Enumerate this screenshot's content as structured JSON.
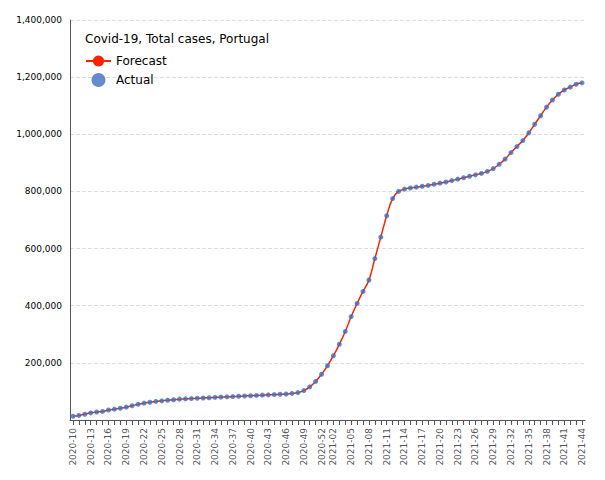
{
  "chart_data": {
    "type": "line",
    "title": "Covid-19, Total cases, Portugal",
    "categories": [
      "2020-10",
      null,
      null,
      "2020-13",
      null,
      null,
      "2020-16",
      null,
      null,
      "2020-19",
      null,
      null,
      "2020-22",
      null,
      null,
      "2020-25",
      null,
      null,
      "2020-28",
      null,
      null,
      "2020-31",
      null,
      null,
      "2020-34",
      null,
      null,
      "2020-37",
      null,
      null,
      "2020-40",
      null,
      null,
      "2020-43",
      null,
      null,
      "2020-46",
      null,
      null,
      "2020-49",
      null,
      null,
      "2020-52",
      null,
      "2021-02",
      null,
      null,
      "2021-05",
      null,
      null,
      "2021-08",
      null,
      null,
      "2021-11",
      null,
      null,
      "2021-14",
      null,
      null,
      "2021-17",
      null,
      null,
      "2021-20",
      null,
      null,
      "2021-23",
      null,
      null,
      "2021-26",
      null,
      null,
      "2021-29",
      null,
      null,
      "2021-32",
      null,
      null,
      "2021-35",
      null,
      null,
      "2021-38",
      null,
      null,
      "2021-41",
      null,
      null,
      "2021-44"
    ],
    "series": [
      {
        "name": "Forecast",
        "type": "line",
        "color": "#FF2200",
        "line_style": "solid",
        "values": [
          13000,
          16000,
          20000,
          25000,
          28000,
          30000,
          35000,
          38000,
          41000,
          45000,
          50000,
          55000,
          59000,
          62000,
          65000,
          67000,
          69000,
          71000,
          73000,
          74000,
          75000,
          76000,
          77000,
          78000,
          79000,
          80000,
          81000,
          82000,
          83000,
          84000,
          85000,
          86000,
          87000,
          88000,
          89000,
          90000,
          91000,
          93000,
          96000,
          103000,
          116000,
          135000,
          160000,
          190000,
          225000,
          265000,
          310000,
          362000,
          408000,
          450000,
          490000,
          565000,
          640000,
          715000,
          775000,
          800000,
          808000,
          812000,
          815000,
          818000,
          821000,
          825000,
          829000,
          833000,
          838000,
          843000,
          848000,
          853000,
          858000,
          863000,
          870000,
          880000,
          895000,
          913000,
          936000,
          957000,
          978000,
          1005000,
          1035000,
          1065000,
          1095000,
          1120000,
          1140000,
          1155000,
          1165000,
          1175000,
          1180000
        ]
      },
      {
        "name": "Actual",
        "type": "scatter",
        "color": "#3D6FBF",
        "marker": "circle",
        "values": [
          13000,
          16000,
          20000,
          25000,
          28000,
          30000,
          35000,
          38000,
          41000,
          45000,
          50000,
          55000,
          59000,
          62000,
          65000,
          67000,
          69000,
          71000,
          73000,
          74000,
          75000,
          76000,
          77000,
          78000,
          79000,
          80000,
          81000,
          82000,
          83000,
          84000,
          85000,
          86000,
          87000,
          88000,
          89000,
          90000,
          91000,
          93000,
          96000,
          103000,
          116000,
          135000,
          160000,
          190000,
          225000,
          265000,
          310000,
          362000,
          408000,
          450000,
          490000,
          565000,
          640000,
          715000,
          775000,
          800000,
          808000,
          812000,
          815000,
          818000,
          821000,
          825000,
          829000,
          833000,
          838000,
          843000,
          848000,
          853000,
          858000,
          863000,
          870000,
          880000,
          895000,
          913000,
          936000,
          957000,
          978000,
          1005000,
          1035000,
          1065000,
          1095000,
          1120000,
          1140000,
          1155000,
          1165000,
          1175000,
          1180000
        ]
      }
    ],
    "ylim": [
      0,
      1400000
    ],
    "yticks": [
      {
        "value": 200000,
        "label": "200,000"
      },
      {
        "value": 400000,
        "label": "400,000"
      },
      {
        "value": 600000,
        "label": "600,000"
      },
      {
        "value": 800000,
        "label": "800,000"
      },
      {
        "value": 1000000,
        "label": "1,000,000"
      },
      {
        "value": 1200000,
        "label": "1,200,000"
      },
      {
        "value": 1400000,
        "label": "1,400,000"
      }
    ],
    "grid": true,
    "legend": "upper left"
  }
}
